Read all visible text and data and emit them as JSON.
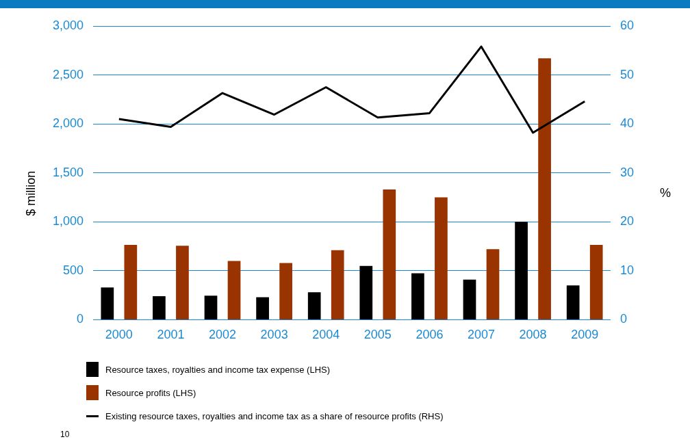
{
  "chart_data": {
    "type": "bar",
    "categories": [
      "2000",
      "2001",
      "2002",
      "2003",
      "2004",
      "2005",
      "2006",
      "2007",
      "2008",
      "2009"
    ],
    "series": [
      {
        "name": "Resource taxes, royalties and income tax expense (LHS)",
        "color": "#000000",
        "values": [
          330,
          240,
          245,
          230,
          280,
          550,
          475,
          410,
          1000,
          350
        ]
      },
      {
        "name": "Resource profits (LHS)",
        "color": "#993300",
        "values": [
          765,
          755,
          600,
          580,
          710,
          1330,
          1250,
          720,
          2670,
          765
        ]
      },
      {
        "name": "Existing resource taxes, royalties and income tax as a share of resource profits (RHS)",
        "type": "line",
        "axis": "y2",
        "color": "#000000",
        "values": [
          41.0,
          39.4,
          46.3,
          41.9,
          47.5,
          41.3,
          42.2,
          55.8,
          38.2,
          44.6
        ]
      }
    ],
    "ylabel": "$ million",
    "y2label": "%",
    "ylim": [
      0,
      3000
    ],
    "yticks": [
      0,
      {
        "value": 500,
        "label": "500"
      },
      {
        "value": 1000,
        "label": "1,000"
      },
      {
        "value": 1500,
        "label": "1,500"
      },
      {
        "value": 2000,
        "label": "2,000"
      },
      {
        "value": 2500,
        "label": "2,500"
      },
      {
        "value": 3000,
        "label": "3,000"
      }
    ],
    "y2lim": [
      0,
      60
    ],
    "y2ticks": [
      0,
      10,
      20,
      30,
      40,
      50,
      60
    ],
    "grid": "y",
    "legend": "bottom",
    "marker": "none",
    "line_style": "solid",
    "annotations": [
      "10"
    ]
  }
}
